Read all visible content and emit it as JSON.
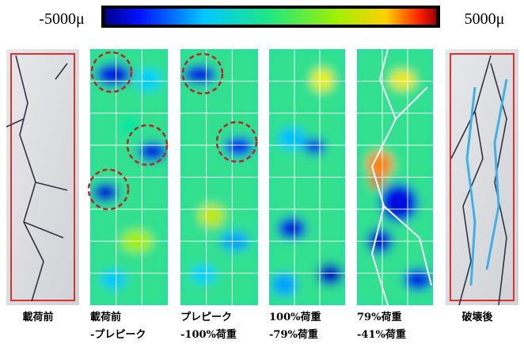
{
  "colorbar": {
    "min_label": "-5000μ",
    "max_label": "5000μ"
  },
  "panels": [
    {
      "caption": [
        "載荷前"
      ]
    },
    {
      "caption": [
        "載荷前",
        "-プレピーク"
      ]
    },
    {
      "caption": [
        "プレピーク",
        "-100%荷重"
      ]
    },
    {
      "caption": [
        "100%荷重",
        "-79%荷重"
      ]
    },
    {
      "caption": [
        "79%荷重",
        "-41%荷重"
      ]
    },
    {
      "caption": [
        "破壊後"
      ]
    }
  ]
}
